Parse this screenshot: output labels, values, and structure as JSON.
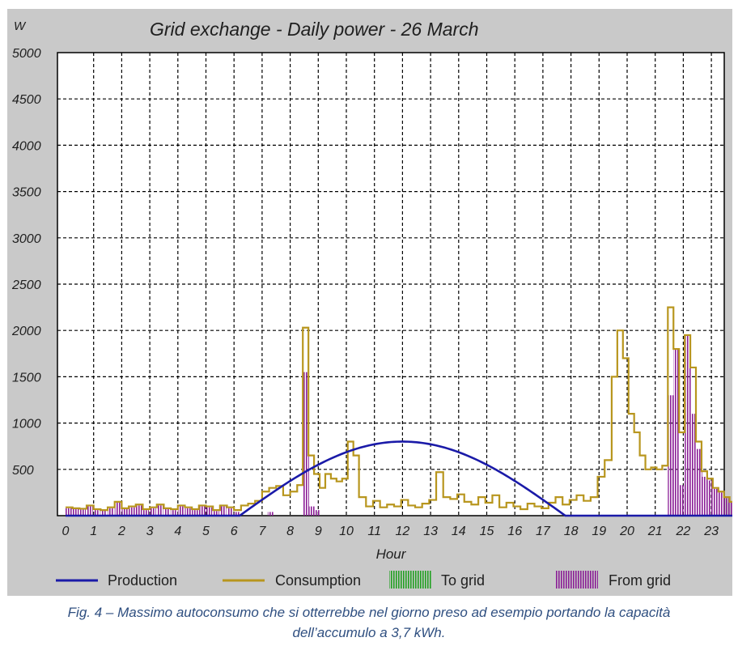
{
  "chart_data": {
    "type": "line",
    "title": "Grid exchange - Daily power - 26 March",
    "ylabel": "W",
    "xlabel": "Hour",
    "ylim": [
      0,
      5000
    ],
    "yticks": [
      500,
      1000,
      1500,
      2000,
      2500,
      3000,
      3500,
      4000,
      4500,
      5000
    ],
    "xlim": [
      0,
      24
    ],
    "xticks": [
      "0",
      "1",
      "2",
      "3",
      "4",
      "5",
      "6",
      "7",
      "8",
      "9",
      "10",
      "11",
      "12",
      "13",
      "14",
      "15",
      "16",
      "17",
      "18",
      "19",
      "20",
      "21",
      "22",
      "23"
    ],
    "grid": true,
    "legend_position": "bottom",
    "colors": {
      "production": "#1a1aa8",
      "consumption": "#b8961e",
      "to_grid": "#22a022",
      "from_grid": "#8a1e96"
    },
    "series": [
      {
        "name": "Production",
        "kind": "line",
        "description_points": [
          [
            0,
            0
          ],
          [
            6.2,
            0
          ],
          [
            7,
            160
          ],
          [
            8,
            380
          ],
          [
            9,
            570
          ],
          [
            10,
            700
          ],
          [
            11,
            780
          ],
          [
            12,
            800
          ],
          [
            13,
            770
          ],
          [
            14,
            680
          ],
          [
            15,
            540
          ],
          [
            16,
            350
          ],
          [
            17,
            140
          ],
          [
            17.8,
            0
          ],
          [
            24,
            0
          ]
        ]
      },
      {
        "name": "Consumption",
        "kind": "step",
        "points": [
          [
            0,
            90
          ],
          [
            0.25,
            80
          ],
          [
            0.5,
            75
          ],
          [
            0.75,
            110
          ],
          [
            1,
            70
          ],
          [
            1.25,
            60
          ],
          [
            1.5,
            90
          ],
          [
            1.75,
            150
          ],
          [
            2,
            80
          ],
          [
            2.25,
            100
          ],
          [
            2.5,
            120
          ],
          [
            2.75,
            70
          ],
          [
            3,
            90
          ],
          [
            3.25,
            120
          ],
          [
            3.5,
            80
          ],
          [
            3.75,
            70
          ],
          [
            4,
            110
          ],
          [
            4.25,
            90
          ],
          [
            4.5,
            70
          ],
          [
            4.75,
            110
          ],
          [
            5,
            100
          ],
          [
            5.25,
            60
          ],
          [
            5.5,
            110
          ],
          [
            5.75,
            90
          ],
          [
            6,
            60
          ],
          [
            6.25,
            110
          ],
          [
            6.5,
            130
          ],
          [
            6.75,
            160
          ],
          [
            7,
            260
          ],
          [
            7.25,
            300
          ],
          [
            7.5,
            320
          ],
          [
            7.75,
            220
          ],
          [
            8,
            260
          ],
          [
            8.25,
            330
          ],
          [
            8.45,
            2030
          ],
          [
            8.65,
            650
          ],
          [
            8.85,
            450
          ],
          [
            9.05,
            300
          ],
          [
            9.25,
            450
          ],
          [
            9.45,
            400
          ],
          [
            9.65,
            370
          ],
          [
            9.85,
            400
          ],
          [
            10.05,
            800
          ],
          [
            10.25,
            650
          ],
          [
            10.45,
            200
          ],
          [
            10.7,
            100
          ],
          [
            10.95,
            160
          ],
          [
            11.2,
            90
          ],
          [
            11.45,
            120
          ],
          [
            11.7,
            100
          ],
          [
            11.95,
            170
          ],
          [
            12.2,
            110
          ],
          [
            12.45,
            90
          ],
          [
            12.7,
            130
          ],
          [
            12.95,
            170
          ],
          [
            13.2,
            470
          ],
          [
            13.45,
            200
          ],
          [
            13.7,
            180
          ],
          [
            13.95,
            230
          ],
          [
            14.2,
            150
          ],
          [
            14.45,
            120
          ],
          [
            14.7,
            200
          ],
          [
            14.95,
            140
          ],
          [
            15.2,
            220
          ],
          [
            15.45,
            90
          ],
          [
            15.7,
            140
          ],
          [
            15.95,
            100
          ],
          [
            16.2,
            70
          ],
          [
            16.45,
            130
          ],
          [
            16.7,
            100
          ],
          [
            16.95,
            80
          ],
          [
            17.2,
            140
          ],
          [
            17.45,
            200
          ],
          [
            17.7,
            120
          ],
          [
            17.95,
            170
          ],
          [
            18.2,
            220
          ],
          [
            18.45,
            160
          ],
          [
            18.7,
            200
          ],
          [
            18.95,
            420
          ],
          [
            19.2,
            600
          ],
          [
            19.45,
            1500
          ],
          [
            19.65,
            2000
          ],
          [
            19.85,
            1700
          ],
          [
            20.05,
            1100
          ],
          [
            20.25,
            900
          ],
          [
            20.45,
            650
          ],
          [
            20.65,
            500
          ],
          [
            20.85,
            520
          ],
          [
            21.05,
            500
          ],
          [
            21.25,
            540
          ],
          [
            21.45,
            2250
          ],
          [
            21.65,
            1800
          ],
          [
            21.85,
            900
          ],
          [
            22.05,
            1950
          ],
          [
            22.25,
            1600
          ],
          [
            22.45,
            800
          ],
          [
            22.65,
            480
          ],
          [
            22.85,
            400
          ],
          [
            23.05,
            300
          ],
          [
            23.25,
            260
          ],
          [
            23.45,
            200
          ],
          [
            23.65,
            150
          ],
          [
            23.85,
            110
          ],
          [
            24,
            110
          ]
        ]
      },
      {
        "name": "To grid",
        "kind": "bars",
        "points": []
      },
      {
        "name": "From grid",
        "kind": "bars",
        "points": [
          [
            0,
            80
          ],
          [
            0.25,
            70
          ],
          [
            0.5,
            65
          ],
          [
            0.75,
            100
          ],
          [
            1,
            60
          ],
          [
            1.25,
            55
          ],
          [
            1.5,
            80
          ],
          [
            1.75,
            140
          ],
          [
            2,
            70
          ],
          [
            2.25,
            90
          ],
          [
            2.5,
            110
          ],
          [
            2.75,
            60
          ],
          [
            3,
            80
          ],
          [
            3.25,
            110
          ],
          [
            3.5,
            70
          ],
          [
            3.75,
            60
          ],
          [
            4,
            100
          ],
          [
            4.25,
            80
          ],
          [
            4.5,
            60
          ],
          [
            4.75,
            100
          ],
          [
            5,
            90
          ],
          [
            5.25,
            50
          ],
          [
            5.5,
            100
          ],
          [
            5.75,
            80
          ],
          [
            6,
            40
          ],
          [
            7.2,
            40
          ],
          [
            8.45,
            1550
          ],
          [
            8.65,
            100
          ],
          [
            8.85,
            60
          ],
          [
            21.45,
            1300
          ],
          [
            21.65,
            1800
          ],
          [
            21.85,
            330
          ],
          [
            22.05,
            1950
          ],
          [
            22.25,
            1100
          ],
          [
            22.45,
            720
          ],
          [
            22.65,
            420
          ],
          [
            22.85,
            380
          ],
          [
            23.05,
            290
          ],
          [
            23.25,
            250
          ],
          [
            23.45,
            190
          ],
          [
            23.65,
            140
          ],
          [
            23.85,
            100
          ]
        ]
      }
    ]
  },
  "caption": {
    "line1": "Fig. 4 – Massimo autoconsumo che si otterrebbe nel giorno preso ad esempio portando la capacità",
    "line2": "dell’accumulo a 3,7 kWh."
  }
}
